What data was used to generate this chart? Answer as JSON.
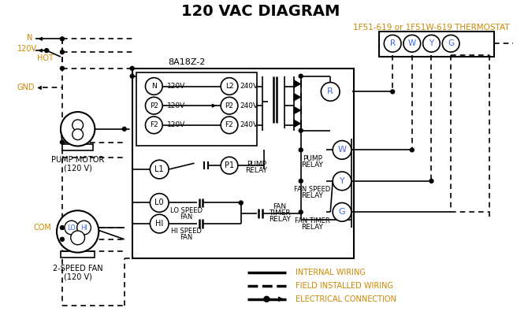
{
  "title": "120 VAC DIAGRAM",
  "title_fontsize": 14,
  "title_color": "#000000",
  "bg_color": "#ffffff",
  "thermostat_label": "1F51-619 or 1F51W-619 THERMOSTAT",
  "thermostat_color": "#cc8800",
  "box_label": "8A18Z-2",
  "legend_color": "#cc8800",
  "line_color": "#000000"
}
